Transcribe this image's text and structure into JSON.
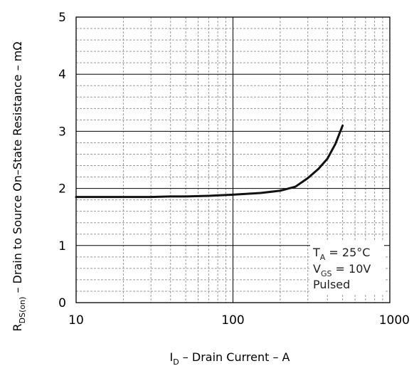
{
  "chart_data": {
    "type": "line",
    "x_scale": "log",
    "xlim": [
      10,
      1000
    ],
    "ylim": [
      0,
      5
    ],
    "x_ticks": [
      "10",
      "100",
      "1000"
    ],
    "y_ticks": [
      "0",
      "1",
      "2",
      "3",
      "4",
      "5"
    ],
    "grid": true,
    "xlabel": {
      "pre": "I",
      "sub": "D",
      "post": " – Drain Current – A"
    },
    "ylabel": {
      "pre": "R",
      "sub": "DS(on)",
      "post": " – Drain to Source On–State Resistance – mΩ"
    },
    "conditions": {
      "line1": {
        "pre": "T",
        "sub": "A",
        "post": " = 25°C"
      },
      "line2": {
        "pre": "V",
        "sub": "GS",
        "post": " = 10V"
      },
      "line3": "Pulsed"
    },
    "series": [
      {
        "x": [
          10,
          20,
          30,
          40,
          50,
          70,
          100,
          150,
          200,
          250,
          300,
          350,
          400,
          450,
          500
        ],
        "y": [
          1.85,
          1.85,
          1.85,
          1.86,
          1.86,
          1.87,
          1.89,
          1.92,
          1.96,
          2.03,
          2.18,
          2.34,
          2.52,
          2.78,
          3.1
        ]
      }
    ],
    "colors": {
      "line": "#111111",
      "grid_major": "#000000",
      "grid_minor": "#9a9a9a"
    }
  }
}
